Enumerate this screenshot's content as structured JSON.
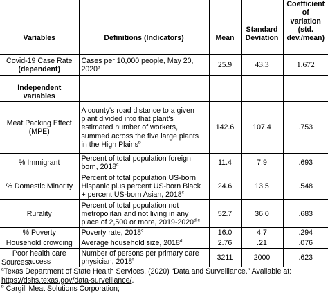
{
  "headers": {
    "variables": "Variables",
    "definitions": "Definitions (Indicators)",
    "mean": "Mean",
    "sd_line1": "Standard",
    "sd_line2": "Deviation",
    "cv_line1": "Coefficient of",
    "cv_line2": "variation (std.",
    "cv_line3": "dev./mean)"
  },
  "dependent": {
    "var_line1": "Covid-19 Case Rate",
    "var_bold": "(dependent)",
    "def_line1": "Cases per 10,000 people, May 20,",
    "def_line2": "2020",
    "def_sup": "a",
    "mean": "25.9",
    "sd": "43.3",
    "cv": "1.672"
  },
  "independent_label": {
    "line1": "Independent",
    "line2": "variables"
  },
  "rows": [
    {
      "var": [
        "Meat Packing Effect",
        "(MPE)"
      ],
      "def": [
        "A county's road distance to a given",
        "plant divided into that plant's",
        "estimated number of workers,",
        "summed across the five large plants",
        "in the High Plains"
      ],
      "sup": "b",
      "mean": "142.6",
      "sd": "107.4",
      "cv": ".753"
    },
    {
      "var": [
        "% Immigrant"
      ],
      "def": [
        "Percent of total population foreign",
        "born, 2018"
      ],
      "sup": "c",
      "mean": "11.4",
      "sd": "7.9",
      "cv": ".693"
    },
    {
      "var": [
        "% Domestic Minority"
      ],
      "def": [
        "Percent of total population US-born",
        "Hispanic plus percent US-born Black",
        "+ percent US-born Asian, 2018"
      ],
      "sup": "c",
      "mean": "24.6",
      "sd": "13.5",
      "cv": ".548"
    },
    {
      "var": [
        "Rurality"
      ],
      "def": [
        "Percent of total population not",
        "metropolitan and not living in any",
        "place of 2,500 or more, 2019-2020"
      ],
      "sup": "d,e",
      "mean": "52.7",
      "sd": "36.0",
      "cv": ".683"
    },
    {
      "var": [
        "% Poverty"
      ],
      "def": [
        "Poverty rate, 2018"
      ],
      "sup": "c",
      "mean": "16.0",
      "sd": "4.7",
      "cv": ".294"
    },
    {
      "var": [
        "Household crowding"
      ],
      "def": [
        "Average household size, 2018"
      ],
      "sup": "d",
      "mean": "2.76",
      "sd": ".21",
      "cv": ".076"
    },
    {
      "var": [
        "Poor health care",
        "access"
      ],
      "def": [
        "Number of persons per primary care",
        "physician, 2018"
      ],
      "sup": "f",
      "mean": "3211",
      "sd": "2000",
      "cv": ".623"
    }
  ],
  "sources": {
    "title": "Sources:",
    "a_sup": "a",
    "a_text": "Texas Department of State Health Services. (2020) “Data and Surveillance.” Available at:",
    "a_link": "https://dshs.texas.gov/data-surveillance/",
    "a_end": ".",
    "b_sup": "b",
    "b_text": "Cargill Meat Solutions Corporation;"
  }
}
